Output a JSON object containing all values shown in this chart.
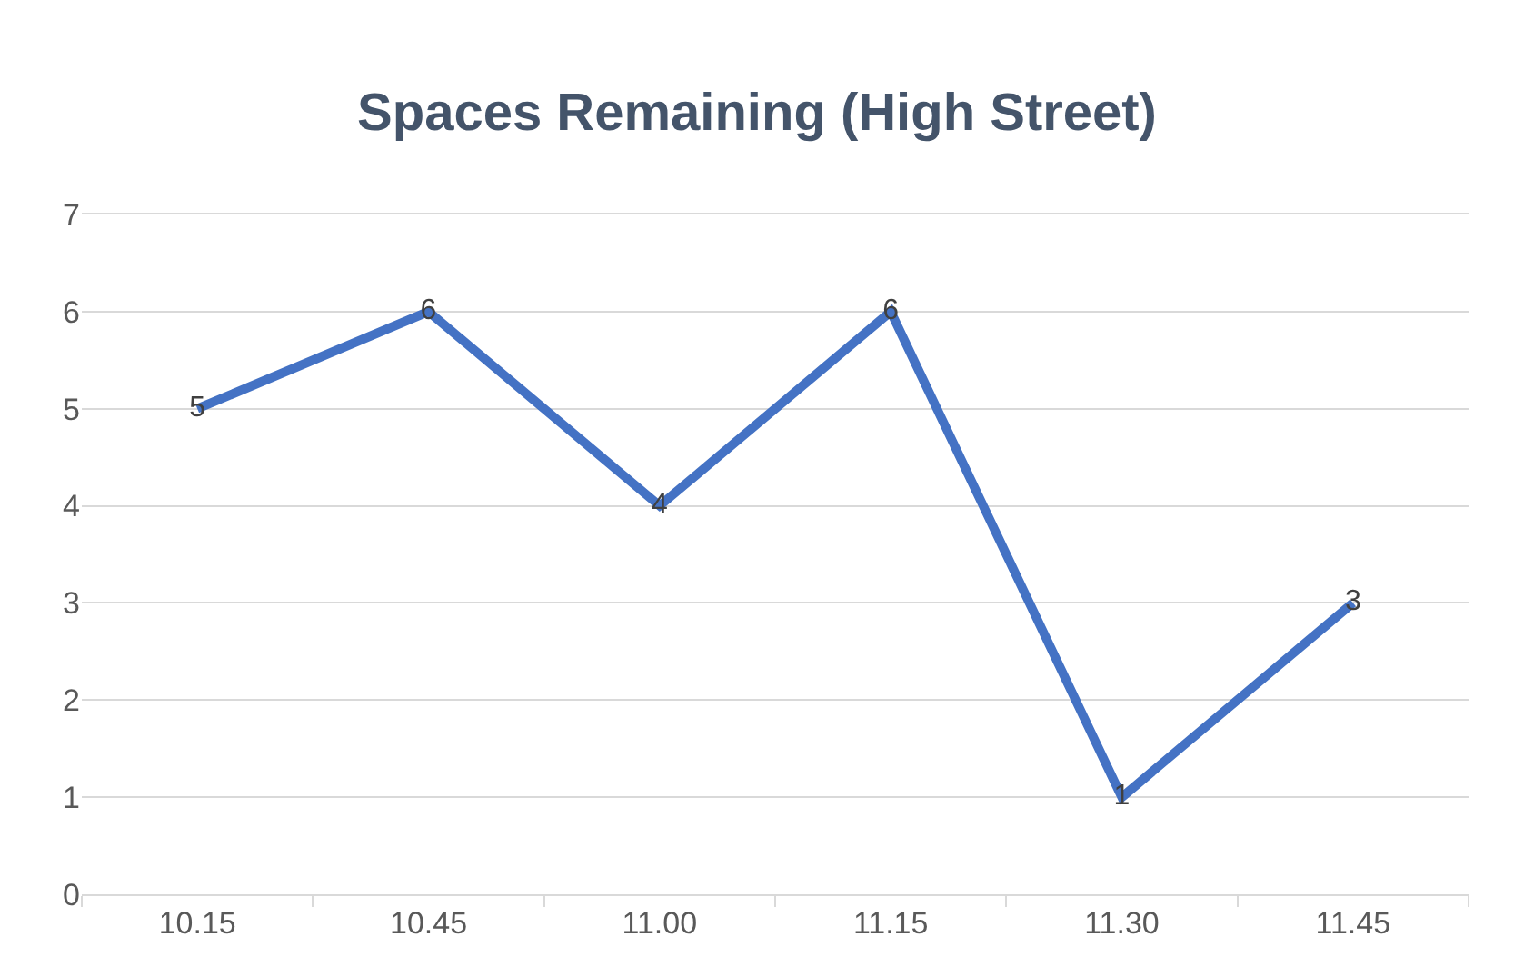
{
  "chart_data": {
    "type": "line",
    "title": "Spaces Remaining (High Street)",
    "categories": [
      "10.15",
      "10.45",
      "11.00",
      "11.15",
      "11.30",
      "11.45"
    ],
    "series": [
      {
        "color": "#4472c4",
        "values": [
          5,
          6,
          4,
          6,
          1,
          3
        ]
      }
    ],
    "ylim": [
      0,
      7
    ],
    "yticks": [
      0,
      1,
      2,
      3,
      4,
      5,
      6,
      7
    ],
    "grid": "y",
    "data_labels": true,
    "marker": "none",
    "line_style": "solid"
  }
}
